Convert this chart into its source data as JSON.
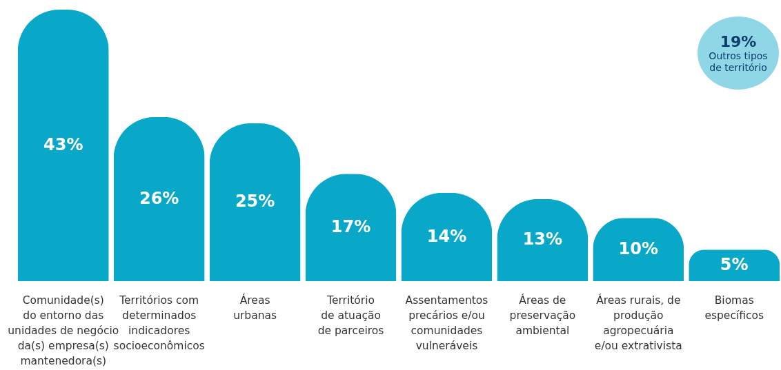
{
  "chart_data": {
    "type": "bar",
    "color": "#0aa8c8",
    "value_labels": [
      "43%",
      "26%",
      "25%",
      "17%",
      "14%",
      "13%",
      "10%",
      "5%"
    ],
    "categories": [
      "Comunidade(s)\ndo entorno das\nunidades de negócio\nda(s) empresa(s)\nmantenedora(s)",
      "Territórios com\ndeterminados\nindicadores\nsocioeconômicos",
      "Áreas\nurbanas",
      "Território\nde atuação\nde parceiros",
      "Assentamentos\nprecários e/ou\ncomunidades\nvulneráveis",
      "Áreas de\npreservação\nambiental",
      "Áreas rurais, de\nprodução\nagropecuária\ne/ou extrativista",
      "Biomas\nespecíficos"
    ],
    "values": [
      43,
      26,
      25,
      17,
      14,
      13,
      10,
      5
    ],
    "annotations": [
      "19%",
      "Outros tipos\nde território"
    ]
  }
}
